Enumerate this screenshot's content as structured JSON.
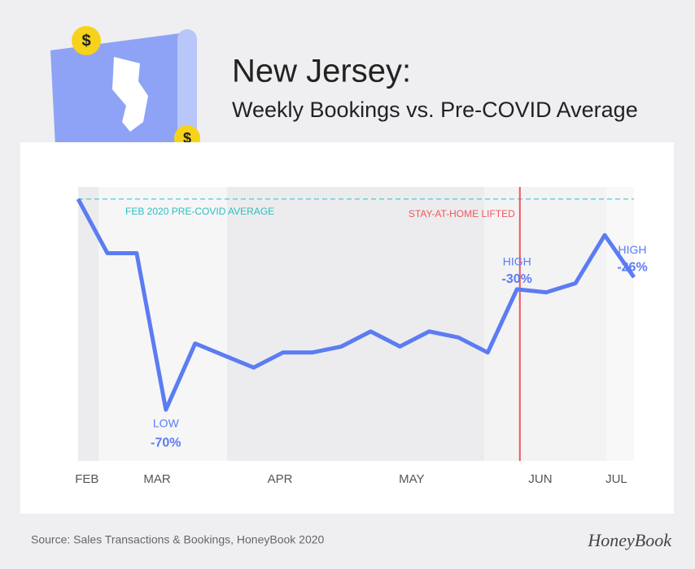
{
  "chart_data": {
    "type": "line",
    "title": "New Jersey:",
    "subtitle": "Weekly Bookings vs. Pre-COVID Average",
    "source": "Source: Sales Transactions & Bookings, HoneyBook 2020",
    "brand": "HoneyBook",
    "x": [
      0,
      1,
      2,
      3,
      4,
      5,
      6,
      7,
      8,
      9,
      10,
      11,
      12,
      13,
      14,
      15,
      16,
      17,
      18,
      19
    ],
    "series": [
      {
        "name": "Weekly Bookings",
        "color": "#5b7cf2",
        "values": [
          0,
          -18,
          -18,
          -70,
          -48,
          -52,
          -56,
          -51,
          -51,
          -49,
          -44,
          -49,
          -44,
          -46,
          -51,
          -30,
          -31,
          -28,
          -12,
          -26
        ],
        "value_labels": [
          null,
          null,
          null,
          "-70%",
          null,
          null,
          null,
          null,
          null,
          null,
          null,
          null,
          null,
          null,
          null,
          "-30%",
          null,
          null,
          null,
          "-26%"
        ]
      }
    ],
    "annotations": [
      "LOW",
      "HIGH",
      "HIGH"
    ],
    "xlim": [
      0,
      19
    ],
    "ylim": [
      -87,
      4
    ],
    "xticks": [
      {
        "value": 0.3,
        "label": "FEB"
      },
      {
        "value": 2.7,
        "label": "MAR"
      },
      {
        "value": 6.9,
        "label": "APR"
      },
      {
        "value": 11.4,
        "label": "MAY"
      },
      {
        "value": 15.8,
        "label": "JUN"
      },
      {
        "value": 18.4,
        "label": "JUL"
      }
    ],
    "reference": {
      "value": 0,
      "label": "FEB 2020 PRE-COVID AVERAGE",
      "color": "#2bbfc0"
    },
    "event": {
      "x": 15.1,
      "label": "STAY-AT-HOME LIFTED",
      "color": "#f0585a"
    }
  }
}
